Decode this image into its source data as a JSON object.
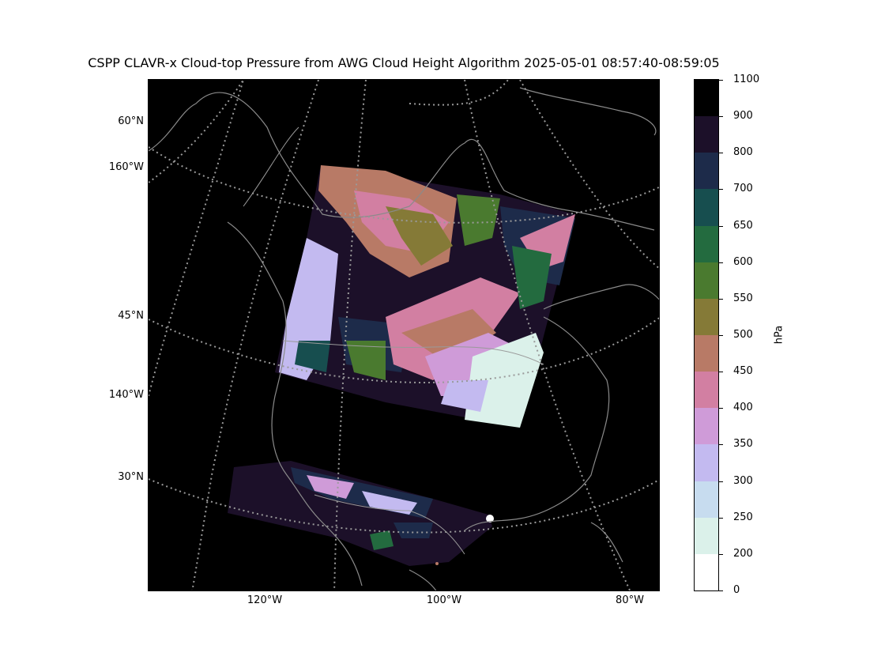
{
  "title": "CSPP CLAVR-x Cloud-top Pressure from AWG Cloud Height Algorithm 2025-05-01 08:57:40-08:59:05",
  "lat_labels": [
    "60°N",
    "160°W",
    "45°N",
    "140°W",
    "30°N"
  ],
  "lon_labels": [
    "120°W",
    "100°W",
    "80°W"
  ],
  "colorbar": {
    "unit": "hPa",
    "ticks": [
      "1100",
      "900",
      "800",
      "700",
      "650",
      "600",
      "550",
      "500",
      "450",
      "400",
      "350",
      "300",
      "250",
      "200",
      "0"
    ],
    "segments": [
      {
        "range": "900-1100",
        "color": "#000000"
      },
      {
        "range": "800-900",
        "color": "#1c1029"
      },
      {
        "range": "700-800",
        "color": "#1d2b4a"
      },
      {
        "range": "650-700",
        "color": "#174e4f"
      },
      {
        "range": "600-650",
        "color": "#236b3f"
      },
      {
        "range": "550-600",
        "color": "#4a7a2f"
      },
      {
        "range": "500-550",
        "color": "#857a37"
      },
      {
        "range": "450-500",
        "color": "#b87a66"
      },
      {
        "range": "400-450",
        "color": "#d27fa2"
      },
      {
        "range": "350-400",
        "color": "#cf9bd8"
      },
      {
        "range": "300-350",
        "color": "#c3baf0"
      },
      {
        "range": "250-300",
        "color": "#c7dcef"
      },
      {
        "range": "200-250",
        "color": "#dbf1ea"
      },
      {
        "range": "0-200",
        "color": "#ffffff"
      }
    ]
  },
  "colors": {
    "background": "#000000",
    "coastline": "#8a8a8a",
    "graticule": "#9a9a9a"
  }
}
